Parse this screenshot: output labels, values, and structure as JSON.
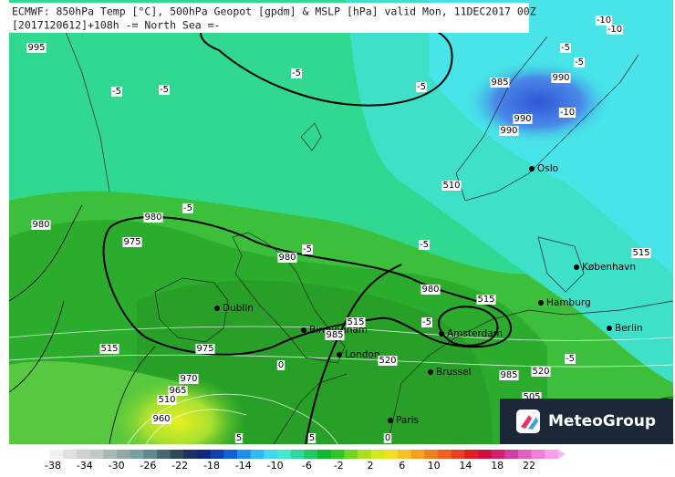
{
  "header": {
    "line1": "ECMWF: 850hPa Temp [°C], 500hPa Geopot [gpdm] & MSLP [hPa] valid Mon, 11DEC2017 00Z",
    "line2": "[2017120612]+108h  -= North Sea =-"
  },
  "cities": [
    "Oslo",
    "København",
    "Hamburg",
    "Berlin",
    "Dublin",
    "Birmingham",
    "London",
    "Amsterdam",
    "Brussel",
    "Paris"
  ],
  "contour_labels": [
    -5,
    -5,
    -5,
    -5,
    -5,
    -5,
    -10,
    -10,
    985,
    990,
    990,
    990,
    -10,
    995,
    510,
    -5,
    980,
    980,
    975,
    -5,
    980,
    -5,
    515,
    980,
    515,
    -5,
    515,
    985,
    515,
    975,
    520,
    985,
    520,
    -5,
    0,
    970,
    965,
    510,
    960,
    505,
    5,
    5,
    0
  ],
  "logo": "MeteoGroup",
  "colorbar": {
    "ticks": [
      -38,
      -34,
      -30,
      -26,
      -22,
      -18,
      -14,
      -10,
      -6,
      -2,
      2,
      6,
      10,
      14,
      18,
      22
    ]
  }
}
